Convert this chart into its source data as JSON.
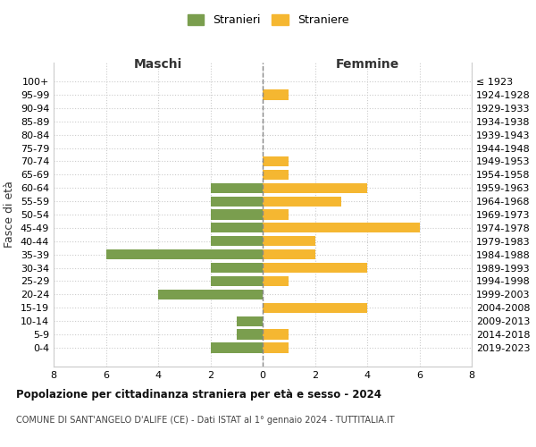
{
  "age_groups": [
    "100+",
    "95-99",
    "90-94",
    "85-89",
    "80-84",
    "75-79",
    "70-74",
    "65-69",
    "60-64",
    "55-59",
    "50-54",
    "45-49",
    "40-44",
    "35-39",
    "30-34",
    "25-29",
    "20-24",
    "15-19",
    "10-14",
    "5-9",
    "0-4"
  ],
  "birth_years": [
    "≤ 1923",
    "1924-1928",
    "1929-1933",
    "1934-1938",
    "1939-1943",
    "1944-1948",
    "1949-1953",
    "1954-1958",
    "1959-1963",
    "1964-1968",
    "1969-1973",
    "1974-1978",
    "1979-1983",
    "1984-1988",
    "1989-1993",
    "1994-1998",
    "1999-2003",
    "2004-2008",
    "2009-2013",
    "2014-2018",
    "2019-2023"
  ],
  "maschi": [
    0,
    0,
    0,
    0,
    0,
    0,
    0,
    0,
    2,
    2,
    2,
    2,
    2,
    6,
    2,
    2,
    4,
    0,
    1,
    1,
    2
  ],
  "femmine": [
    0,
    1,
    0,
    0,
    0,
    0,
    1,
    1,
    4,
    3,
    1,
    6,
    2,
    2,
    4,
    1,
    0,
    4,
    0,
    1,
    1
  ],
  "color_maschi": "#7a9e4e",
  "color_femmine": "#f5b731",
  "title": "Popolazione per cittadinanza straniera per età e sesso - 2024",
  "subtitle": "COMUNE DI SANT'ANGELO D'ALIFE (CE) - Dati ISTAT al 1° gennaio 2024 - TUTTITALIA.IT",
  "ylabel_left": "Fasce di età",
  "xlabel_maschi": "Maschi",
  "xlabel_femmine": "Femmine",
  "legend_maschi": "Stranieri",
  "legend_femmine": "Straniere",
  "xlim": 8,
  "background_color": "#ffffff",
  "grid_color": "#cccccc"
}
